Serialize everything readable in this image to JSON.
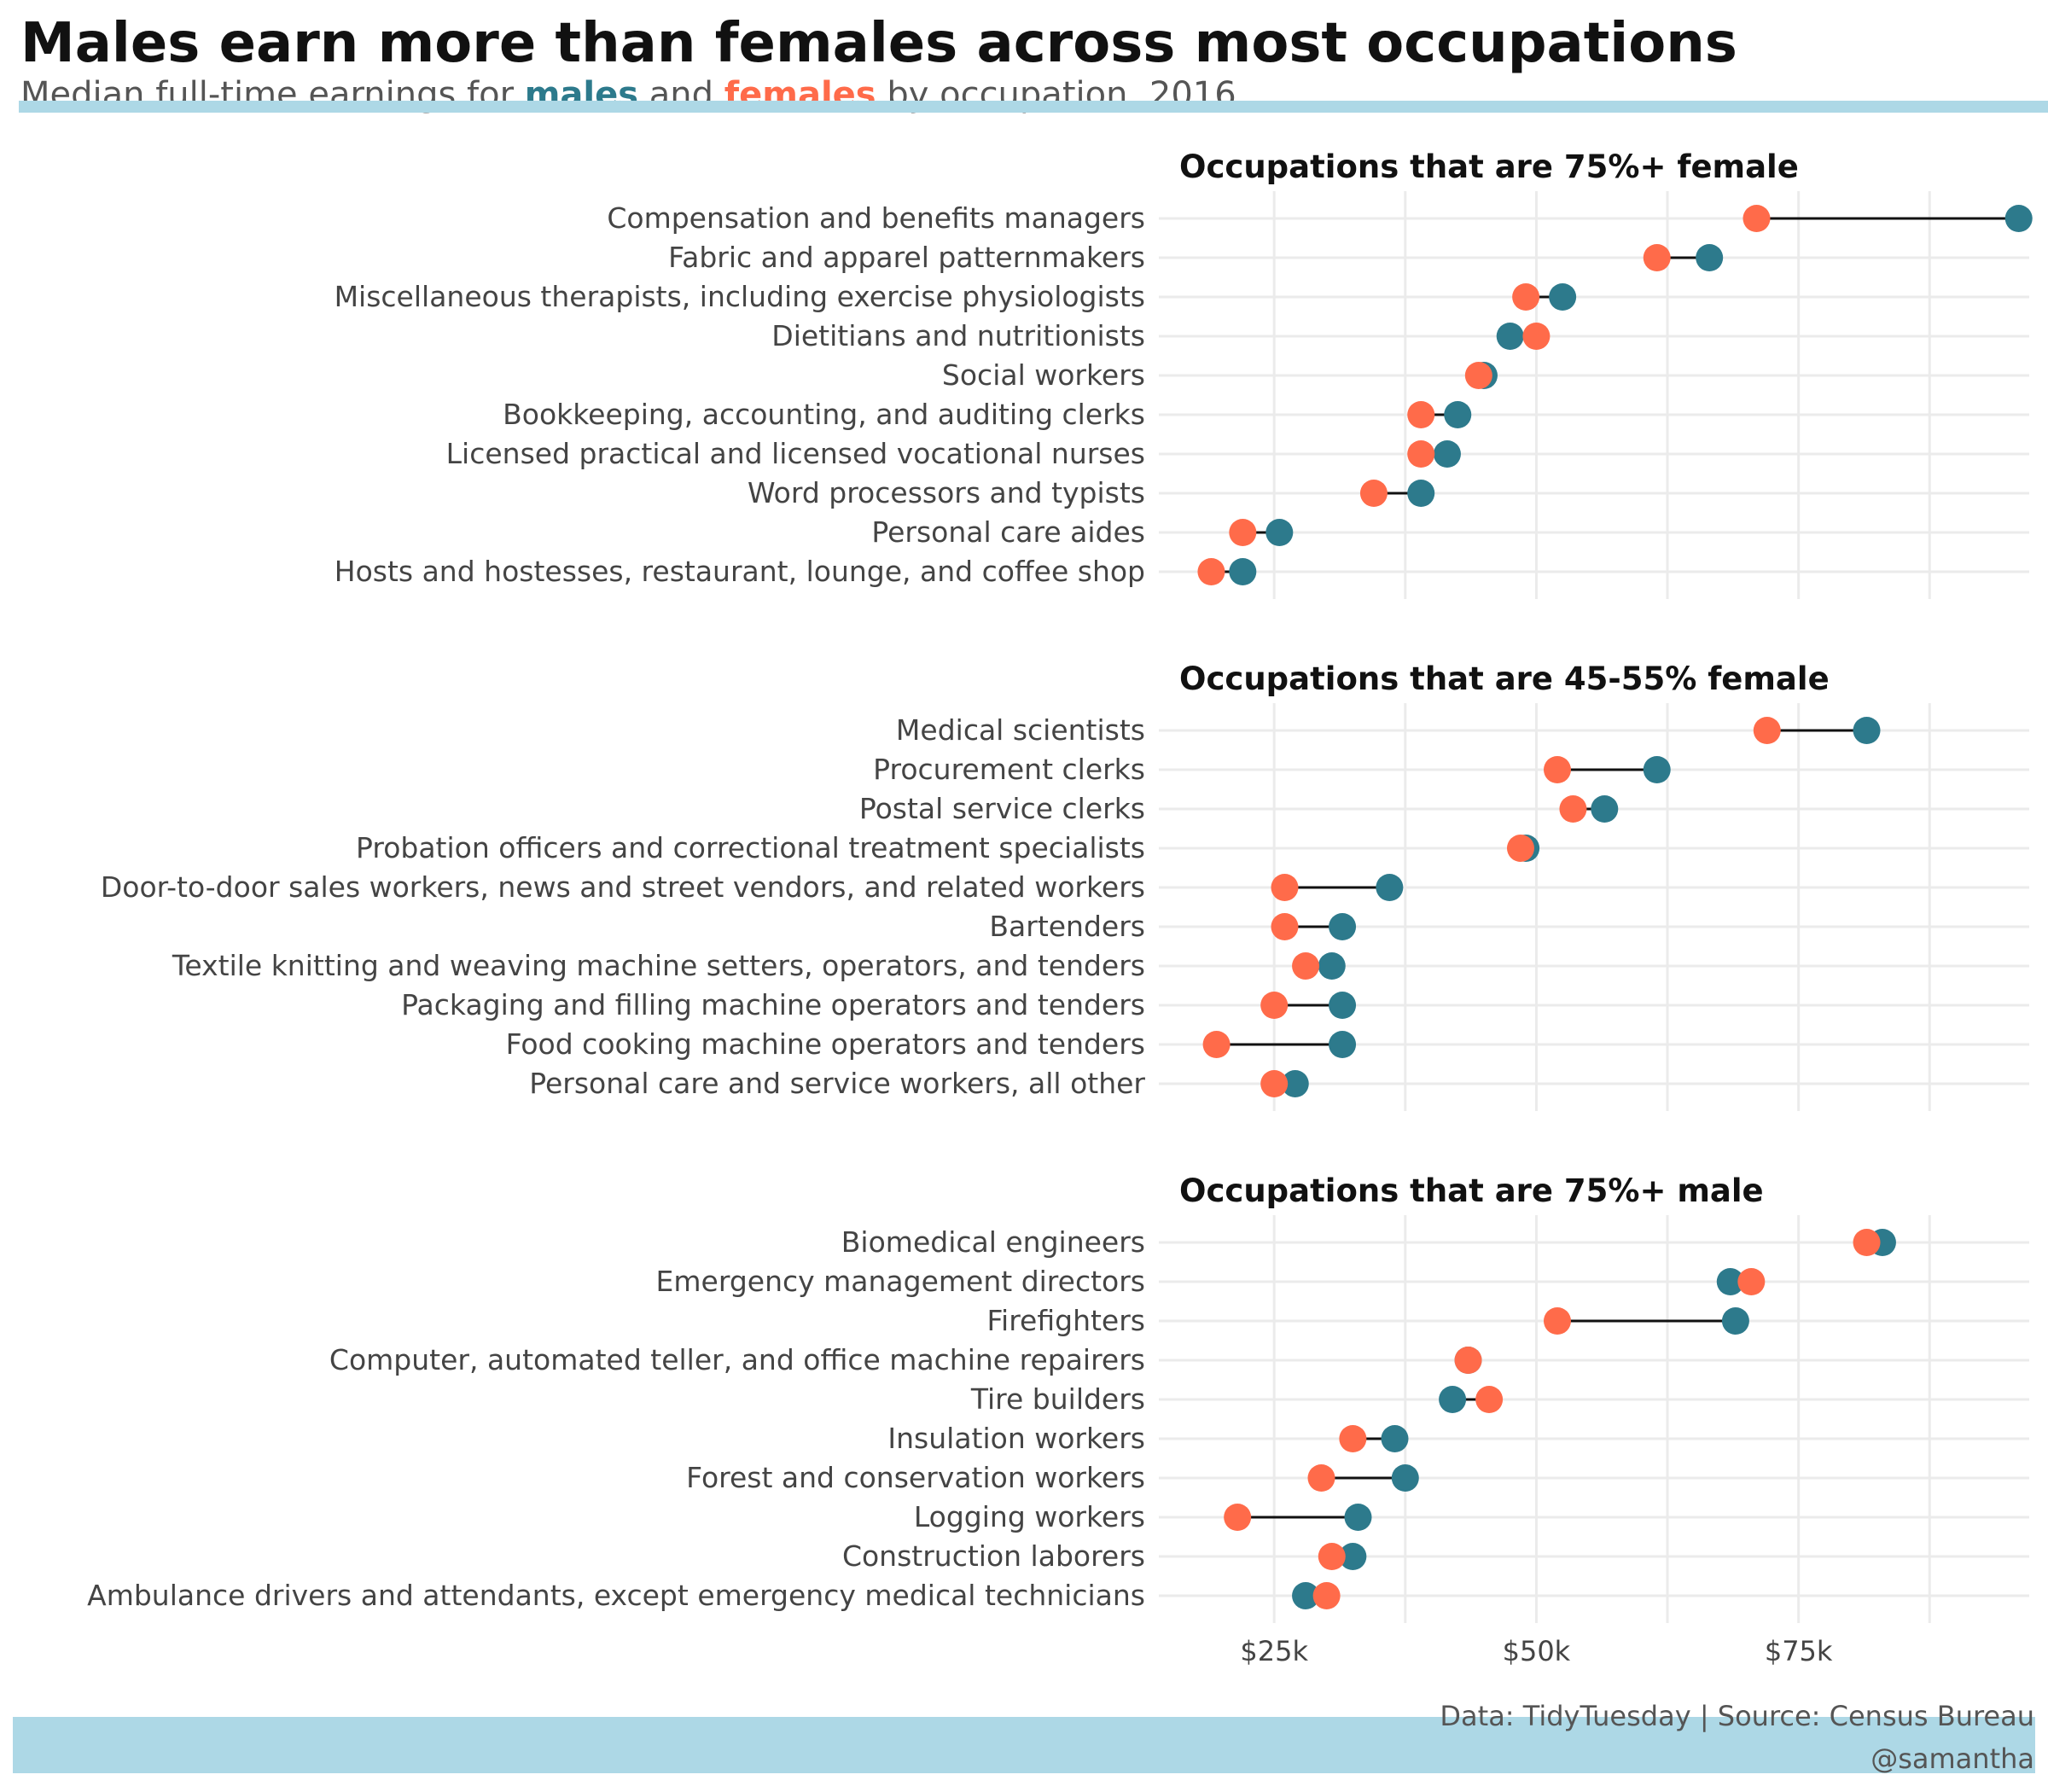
{
  "title": "Males earn more than females across most occupations",
  "subtitle": {
    "prefix": "Median full-time earnings for ",
    "male_label": "males",
    "middle": " and ",
    "female_label": "females",
    "suffix": " by occupation, 2016"
  },
  "caption": {
    "line1": "Data: TidyTuesday | Source: Census Bureau",
    "line2": "@samantha"
  },
  "colors": {
    "male": "#2d7a8c",
    "female": "#ff6b4a",
    "segment": "#111111",
    "grid": "#ebebeb",
    "accent_bar": "#add8e6"
  },
  "chart_data": {
    "type": "dumbbell",
    "xlim": [
      14000,
      97000
    ],
    "x_ticks": [
      {
        "value": 25000,
        "label": "$25k"
      },
      {
        "value": 50000,
        "label": "$50k"
      },
      {
        "value": 75000,
        "label": "$75k"
      }
    ],
    "panels": [
      {
        "title": "Occupations that are 75%+ female",
        "rows": [
          {
            "occupation": "Compensation and benefits managers",
            "male": 96000,
            "female": 71000
          },
          {
            "occupation": "Fabric and apparel patternmakers",
            "male": 66500,
            "female": 61500
          },
          {
            "occupation": "Miscellaneous therapists, including exercise physiologists",
            "male": 52500,
            "female": 49000
          },
          {
            "occupation": "Dietitians and nutritionists",
            "male": 47500,
            "female": 50000
          },
          {
            "occupation": "Social workers",
            "male": 45000,
            "female": 44500
          },
          {
            "occupation": "Bookkeeping, accounting, and auditing clerks",
            "male": 42500,
            "female": 39000
          },
          {
            "occupation": "Licensed practical and licensed vocational nurses",
            "male": 41500,
            "female": 39000
          },
          {
            "occupation": "Word processors and typists",
            "male": 39000,
            "female": 34500
          },
          {
            "occupation": "Personal care aides",
            "male": 25500,
            "female": 22000
          },
          {
            "occupation": "Hosts and hostesses, restaurant, lounge, and coffee shop",
            "male": 22000,
            "female": 19000
          }
        ]
      },
      {
        "title": "Occupations that are 45-55% female",
        "rows": [
          {
            "occupation": "Medical scientists",
            "male": 81500,
            "female": 72000
          },
          {
            "occupation": "Procurement clerks",
            "male": 61500,
            "female": 52000
          },
          {
            "occupation": "Postal service clerks",
            "male": 56500,
            "female": 53500
          },
          {
            "occupation": "Probation officers and correctional treatment specialists",
            "male": 49000,
            "female": 48500
          },
          {
            "occupation": "Door-to-door sales workers, news and street vendors, and related workers",
            "male": 36000,
            "female": 26000
          },
          {
            "occupation": "Bartenders",
            "male": 31500,
            "female": 26000
          },
          {
            "occupation": "Textile knitting and weaving machine setters, operators, and tenders",
            "male": 30500,
            "female": 28000
          },
          {
            "occupation": "Packaging and filling machine operators and tenders",
            "male": 31500,
            "female": 25000
          },
          {
            "occupation": "Food cooking machine operators and tenders",
            "male": 31500,
            "female": 19500
          },
          {
            "occupation": "Personal care and service workers, all other",
            "male": 27000,
            "female": 25000
          }
        ]
      },
      {
        "title": "Occupations that are 75%+ male",
        "rows": [
          {
            "occupation": "Biomedical engineers",
            "male": 83000,
            "female": 81500
          },
          {
            "occupation": "Emergency management directors",
            "male": 68500,
            "female": 70500
          },
          {
            "occupation": "Firefighters",
            "male": 69000,
            "female": 52000
          },
          {
            "occupation": "Computer, automated teller, and office machine repairers",
            "male": 43500,
            "female": 43500
          },
          {
            "occupation": "Tire builders",
            "male": 42000,
            "female": 45500
          },
          {
            "occupation": "Insulation workers",
            "male": 36500,
            "female": 32500
          },
          {
            "occupation": "Forest and conservation workers",
            "male": 37500,
            "female": 29500
          },
          {
            "occupation": "Logging workers",
            "male": 33000,
            "female": 21500
          },
          {
            "occupation": "Construction laborers",
            "male": 32500,
            "female": 30500
          },
          {
            "occupation": "Ambulance drivers and attendants, except emergency medical technicians",
            "male": 28000,
            "female": 30000
          }
        ]
      }
    ]
  }
}
